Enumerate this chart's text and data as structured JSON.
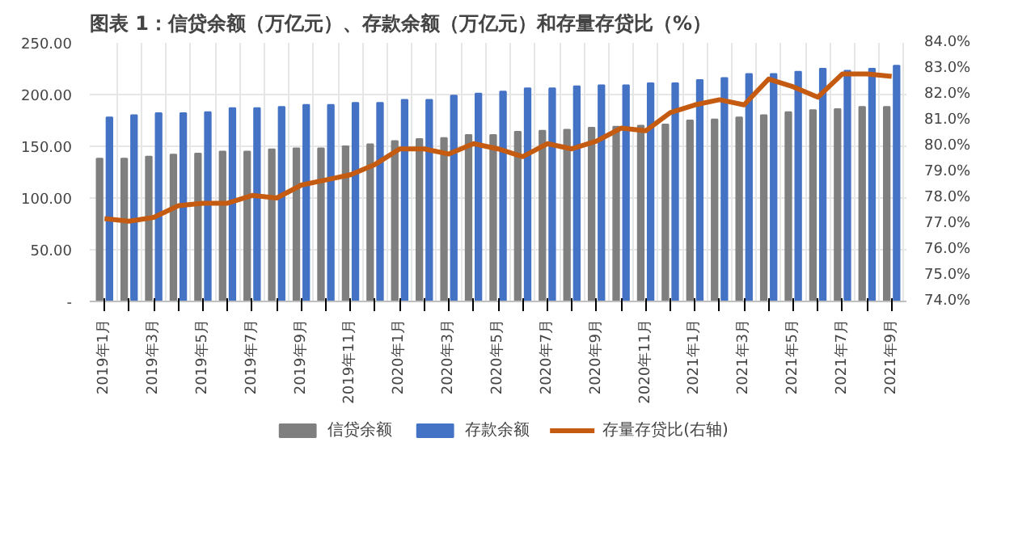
{
  "chart_data": {
    "type": "bar",
    "title": "图表 1：信贷余额（万亿元）、存款余额（万亿元）和存量存贷比（%）",
    "categories": [
      "2019年1月",
      null,
      "2019年3月",
      null,
      "2019年5月",
      null,
      "2019年7月",
      null,
      "2019年9月",
      null,
      "2019年11月",
      null,
      "2020年1月",
      null,
      "2020年3月",
      null,
      "2020年5月",
      null,
      "2020年7月",
      null,
      "2020年9月",
      null,
      "2020年11月",
      null,
      "2021年1月",
      null,
      "2021年3月",
      null,
      "2021年5月",
      null,
      "2021年7月",
      null,
      "2021年9月"
    ],
    "series": [
      {
        "name": "信贷余额",
        "color": "#7f7f7f",
        "values": [
          138,
          138,
          140,
          142,
          143,
          145,
          145,
          147,
          148,
          148,
          150,
          152,
          155,
          157,
          158,
          161,
          161,
          164,
          165,
          166,
          168,
          169,
          170,
          171,
          175,
          176,
          178,
          180,
          183,
          185,
          186,
          188,
          188
        ]
      },
      {
        "name": "存款余额",
        "color": "#4472c4",
        "values": [
          178,
          180,
          182,
          182,
          183,
          187,
          187,
          188,
          190,
          190,
          192,
          192,
          195,
          195,
          199,
          201,
          203,
          206,
          206,
          208,
          209,
          209,
          211,
          211,
          214,
          216,
          220,
          220,
          222,
          225,
          223,
          225,
          228
        ]
      },
      {
        "name": "存量存贷比(右轴)",
        "type": "line",
        "axis": "y2",
        "color": "#c55a11",
        "values": [
          77.2,
          77.1,
          77.25,
          77.7,
          77.8,
          77.8,
          78.1,
          78.0,
          78.5,
          78.7,
          78.9,
          79.3,
          79.9,
          79.9,
          79.7,
          80.1,
          79.9,
          79.6,
          80.1,
          79.9,
          80.2,
          80.7,
          80.6,
          81.3,
          81.6,
          81.8,
          81.6,
          82.6,
          82.3,
          81.9,
          82.8,
          82.8,
          82.7
        ]
      }
    ],
    "ylim": [
      0,
      250
    ],
    "yticks": [
      {
        "value": 0,
        "label": "-"
      },
      {
        "value": 50,
        "label": "50.00"
      },
      {
        "value": 100,
        "label": "100.00"
      },
      {
        "value": 150,
        "label": "150.00"
      },
      {
        "value": 200,
        "label": "200.00"
      },
      {
        "value": 250,
        "label": "250.00"
      }
    ],
    "y2lim": [
      74,
      84
    ],
    "y2ticks": [
      {
        "value": 74,
        "label": "74.0%"
      },
      {
        "value": 75,
        "label": "75.0%"
      },
      {
        "value": 76,
        "label": "76.0%"
      },
      {
        "value": 77,
        "label": "77.0%"
      },
      {
        "value": 78,
        "label": "78.0%"
      },
      {
        "value": 79,
        "label": "79.0%"
      },
      {
        "value": 80,
        "label": "80.0%"
      },
      {
        "value": 81,
        "label": "81.0%"
      },
      {
        "value": 82,
        "label": "82.0%"
      },
      {
        "value": 83,
        "label": "83.0%"
      },
      {
        "value": 84,
        "label": "84.0%"
      }
    ],
    "grid": true,
    "legend": "bottom"
  }
}
